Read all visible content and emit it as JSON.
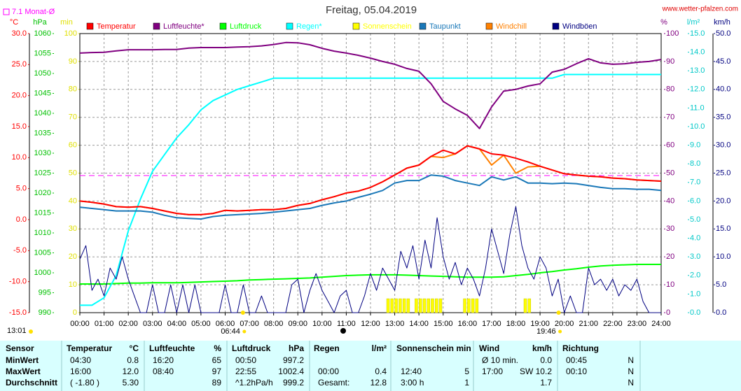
{
  "chart_data": {
    "type": "line",
    "title": "Freitag, 05.04.2019",
    "site": "www.wetter-pfalzen.com",
    "day_length": "13:01",
    "mean_line": {
      "label": "7.1 Monat-Ø",
      "value": 7.1,
      "axis": "c",
      "color": "#ff00ff"
    },
    "sun_events": [
      {
        "label": "06:44",
        "x": 6.733
      },
      {
        "label": "19:46",
        "x": 19.767
      }
    ],
    "xlim": [
      0,
      24
    ],
    "xticks": [
      {
        "value": 0,
        "label": "00:00"
      },
      {
        "value": 1,
        "label": "01:00"
      },
      {
        "value": 2,
        "label": "02:00"
      },
      {
        "value": 3,
        "label": "03:00"
      },
      {
        "value": 4,
        "label": "04:00"
      },
      {
        "value": 5,
        "label": "05:00"
      },
      {
        "value": 6,
        "label": "06:00"
      },
      {
        "value": 7,
        "label": "07:00"
      },
      {
        "value": 8,
        "label": "08:00"
      },
      {
        "value": 9,
        "label": "09:00"
      },
      {
        "value": 10,
        "label": "10:00"
      },
      {
        "value": 11,
        "label": "11:00"
      },
      {
        "value": 12,
        "label": "12:00"
      },
      {
        "value": 13,
        "label": "13:00"
      },
      {
        "value": 14,
        "label": "14:00"
      },
      {
        "value": 15,
        "label": "15:00"
      },
      {
        "value": 16,
        "label": "16:00"
      },
      {
        "value": 17,
        "label": "17:00"
      },
      {
        "value": 18,
        "label": "18:00"
      },
      {
        "value": 19,
        "label": "19:00"
      },
      {
        "value": 20,
        "label": "20:00"
      },
      {
        "value": 21,
        "label": "21:00"
      },
      {
        "value": 22,
        "label": "22:00"
      },
      {
        "value": 23,
        "label": "23:00"
      },
      {
        "value": 24,
        "label": "24:00"
      }
    ],
    "grid": true,
    "axes": [
      {
        "id": "c",
        "side": "left",
        "label": "°C",
        "color": "#ff0000",
        "lim": [
          -15,
          30
        ],
        "ticks": [
          {
            "value": 30,
            "label": "30.0"
          },
          {
            "value": 25,
            "label": "25.0"
          },
          {
            "value": 20,
            "label": "20.0"
          },
          {
            "value": 15,
            "label": "15.0"
          },
          {
            "value": 10,
            "label": "10.0"
          },
          {
            "value": 5,
            "label": "5.0"
          },
          {
            "value": 0,
            "label": "0.0"
          },
          {
            "value": -5,
            "label": "-5.0"
          },
          {
            "value": -10,
            "label": "-10.0"
          },
          {
            "value": -15,
            "label": "-15.0"
          }
        ]
      },
      {
        "id": "hpa",
        "side": "left",
        "label": "hPa",
        "color": "#00c000",
        "lim": [
          990,
          1060
        ],
        "ticks": [
          1060,
          1055,
          1050,
          1045,
          1040,
          1035,
          1030,
          1025,
          1020,
          1015,
          1010,
          1005,
          1000,
          995,
          990
        ]
      },
      {
        "id": "min",
        "side": "left",
        "label": "min",
        "color": "#e0e000",
        "lim": [
          0,
          100
        ],
        "ticks": [
          100,
          90,
          80,
          70,
          60,
          50,
          40,
          30,
          20,
          10,
          0
        ]
      },
      {
        "id": "pct",
        "side": "right",
        "label": "%",
        "color": "#800080",
        "lim": [
          0,
          100
        ],
        "ticks": [
          100,
          90,
          80,
          70,
          60,
          50,
          40,
          30,
          20,
          10,
          0
        ]
      },
      {
        "id": "l",
        "side": "right",
        "label": "l/m²",
        "color": "#00c8c8",
        "lim": [
          0,
          15
        ],
        "ticks": [
          {
            "value": 15,
            "label": "15.0"
          },
          {
            "value": 14,
            "label": "14.0"
          },
          {
            "value": 13,
            "label": "13.0"
          },
          {
            "value": 12,
            "label": "12.0"
          },
          {
            "value": 11,
            "label": "11.0"
          },
          {
            "value": 10,
            "label": "10.0"
          },
          {
            "value": 9,
            "label": "9.0"
          },
          {
            "value": 8,
            "label": "8.0"
          },
          {
            "value": 7,
            "label": "7.0"
          },
          {
            "value": 6,
            "label": "6.0"
          },
          {
            "value": 5,
            "label": "5.0"
          },
          {
            "value": 4,
            "label": "4.0"
          },
          {
            "value": 3,
            "label": "3.0"
          },
          {
            "value": 2,
            "label": "2.0"
          },
          {
            "value": 1,
            "label": "1.0"
          },
          {
            "value": 0,
            "label": "0.0"
          }
        ]
      },
      {
        "id": "kmh",
        "side": "right",
        "label": "km/h",
        "color": "#000080",
        "lim": [
          0,
          50
        ],
        "ticks": [
          {
            "value": 50,
            "label": "50.0"
          },
          {
            "value": 45,
            "label": "45.0"
          },
          {
            "value": 40,
            "label": "40.0"
          },
          {
            "value": 35,
            "label": "35.0"
          },
          {
            "value": 30,
            "label": "30.0"
          },
          {
            "value": 25,
            "label": "25.0"
          },
          {
            "value": 20,
            "label": "20.0"
          },
          {
            "value": 15,
            "label": "15.0"
          },
          {
            "value": 10,
            "label": "10.0"
          },
          {
            "value": 5,
            "label": "5.0"
          },
          {
            "value": 0,
            "label": "0.0"
          }
        ]
      }
    ],
    "x": [
      0,
      0.5,
      1,
      1.5,
      2,
      2.5,
      3,
      3.5,
      4,
      4.5,
      5,
      5.5,
      6,
      6.5,
      7,
      7.5,
      8,
      8.5,
      9,
      9.5,
      10,
      10.5,
      11,
      11.5,
      12,
      12.5,
      13,
      13.5,
      14,
      14.5,
      15,
      15.5,
      16,
      16.5,
      17,
      17.5,
      18,
      18.5,
      19,
      19.5,
      20,
      20.5,
      21,
      21.5,
      22,
      22.5,
      23,
      23.5,
      24
    ],
    "series": [
      {
        "name": "Temperatur",
        "color": "#ff0000",
        "axis": "c",
        "values": [
          3.0,
          2.8,
          2.5,
          2.1,
          2.0,
          2.1,
          1.8,
          1.4,
          1.0,
          0.8,
          0.8,
          1.0,
          1.5,
          1.4,
          1.5,
          1.6,
          1.6,
          1.8,
          2.3,
          2.6,
          3.2,
          3.7,
          4.3,
          4.6,
          5.2,
          6.1,
          7.2,
          8.3,
          8.8,
          10.2,
          11.2,
          10.6,
          11.9,
          11.4,
          10.6,
          10.4,
          9.9,
          9.3,
          8.6,
          8.0,
          7.4,
          7.2,
          7.0,
          6.9,
          6.7,
          6.6,
          6.4,
          6.3,
          6.2
        ]
      },
      {
        "name": "Luftfeuchte*",
        "color": "#800080",
        "axis": "pct",
        "values": [
          93,
          93.2,
          93.3,
          93.8,
          94.2,
          94.2,
          94.2,
          94.3,
          94.3,
          94.8,
          95,
          95,
          95,
          95.2,
          95.3,
          95.6,
          96.1,
          96.8,
          96.7,
          96,
          94.7,
          93.7,
          93,
          92.2,
          91.2,
          90,
          89,
          87.5,
          86.5,
          82,
          75.7,
          73,
          70.7,
          66,
          73.7,
          79.4,
          80,
          81.2,
          82,
          86.2,
          87.2,
          89.2,
          91,
          89.5,
          89,
          89.2,
          89.7,
          90,
          90.7
        ]
      },
      {
        "name": "Luftdruck",
        "color": "#00ff00",
        "axis": "hpa",
        "values": [
          997.2,
          997.2,
          997.2,
          997.3,
          997.4,
          997.4,
          997.5,
          997.5,
          997.5,
          997.6,
          997.7,
          997.8,
          997.9,
          998.0,
          998.2,
          998.3,
          998.4,
          998.5,
          998.6,
          998.7,
          998.9,
          999.1,
          999.3,
          999.4,
          999.5,
          999.5,
          999.5,
          999.4,
          999.3,
          999.2,
          999.1,
          999.0,
          998.9,
          998.9,
          998.9,
          999.0,
          999.3,
          999.6,
          1000.0,
          1000.3,
          1000.7,
          1001.0,
          1001.4,
          1001.7,
          1001.9,
          1002.0,
          1002.1,
          1002.1,
          1002.1
        ]
      },
      {
        "name": "Regen*",
        "color": "#00ffff",
        "axis": "l",
        "values": [
          0.4,
          0.4,
          0.8,
          2.0,
          4.4,
          6.1,
          7.6,
          8.5,
          9.4,
          10.1,
          10.9,
          11.4,
          11.7,
          12.0,
          12.2,
          12.4,
          12.6,
          12.6,
          12.6,
          12.6,
          12.6,
          12.6,
          12.6,
          12.6,
          12.6,
          12.6,
          12.6,
          12.6,
          12.6,
          12.6,
          12.6,
          12.6,
          12.6,
          12.6,
          12.6,
          12.6,
          12.6,
          12.6,
          12.6,
          12.6,
          12.8,
          12.8,
          12.8,
          12.8,
          12.8,
          12.8,
          12.8,
          12.8,
          12.8
        ]
      },
      {
        "name": "Sonnenschein",
        "color": "#ffff00",
        "axis": "min",
        "type": "bar",
        "x": [
          12.667,
          12.833,
          13,
          13.167,
          13.333,
          13.5,
          13.833,
          14,
          14.167,
          14.333,
          14.5,
          14.667,
          14.833,
          15.833,
          16,
          16.167,
          16.333,
          18.333,
          18.5
        ],
        "values": [
          5,
          5,
          5,
          5,
          5,
          5,
          5,
          5,
          5,
          5,
          5,
          5,
          5,
          5,
          5,
          5,
          5,
          5,
          5
        ]
      },
      {
        "name": "Taupunkt",
        "color": "#1a78b8",
        "axis": "c",
        "values": [
          2.0,
          1.8,
          1.6,
          1.4,
          1.4,
          1.4,
          1.2,
          0.7,
          0.3,
          0.2,
          0.1,
          0.5,
          0.7,
          0.8,
          0.9,
          1.0,
          1.2,
          1.4,
          1.6,
          1.8,
          2.3,
          2.7,
          3.0,
          3.6,
          4.1,
          4.7,
          5.9,
          6.3,
          6.3,
          7.2,
          7.0,
          6.3,
          5.9,
          5.5,
          6.9,
          6.4,
          6.9,
          5.9,
          5.9,
          5.8,
          5.9,
          5.8,
          5.5,
          5.2,
          5.0,
          5.0,
          4.9,
          4.9,
          4.7
        ]
      },
      {
        "name": "Windchill",
        "color": "#ff8000",
        "axis": "c",
        "values": [
          3.0,
          2.8,
          2.5,
          2.1,
          2.0,
          2.1,
          1.8,
          1.4,
          1.0,
          0.8,
          0.8,
          1.0,
          1.5,
          1.4,
          1.5,
          1.6,
          1.6,
          1.8,
          2.3,
          2.6,
          3.2,
          3.7,
          4.3,
          4.6,
          5.2,
          6.1,
          7.2,
          8.3,
          8.8,
          10.2,
          10.0,
          10.6,
          11.9,
          11.4,
          8.8,
          10.4,
          7.5,
          8.5,
          8.6,
          8.0,
          7.4,
          7.2,
          7.0,
          6.9,
          6.7,
          6.6,
          6.4,
          6.3,
          6.2
        ]
      },
      {
        "name": "Windböen",
        "color": "#000080",
        "axis": "kmh",
        "x": [
          0,
          0.25,
          0.5,
          0.75,
          1,
          1.25,
          1.5,
          1.75,
          2,
          2.25,
          2.5,
          2.75,
          3,
          3.25,
          3.5,
          3.75,
          4,
          4.25,
          4.5,
          4.75,
          5,
          5.25,
          5.5,
          5.75,
          6,
          6.25,
          6.5,
          6.75,
          7,
          7.25,
          7.5,
          7.75,
          8,
          8.25,
          8.5,
          8.75,
          9,
          9.25,
          9.5,
          9.75,
          10,
          10.25,
          10.5,
          10.75,
          11,
          11.25,
          11.5,
          11.75,
          12,
          12.25,
          12.5,
          12.75,
          13,
          13.25,
          13.5,
          13.75,
          14,
          14.25,
          14.5,
          14.75,
          15,
          15.25,
          15.5,
          15.75,
          16,
          16.25,
          16.5,
          16.75,
          17,
          17.25,
          17.5,
          17.75,
          18,
          18.25,
          18.5,
          18.75,
          19,
          19.25,
          19.5,
          19.75,
          20,
          20.25,
          20.5,
          20.75,
          21,
          21.25,
          21.5,
          21.75,
          22,
          22.25,
          22.5,
          22.75,
          23,
          23.25,
          23.5,
          23.75,
          24
        ],
        "values": [
          9.6,
          12,
          4,
          6,
          3,
          8,
          6,
          10,
          6,
          3,
          0,
          0,
          5,
          0,
          0,
          5,
          0,
          5,
          0,
          5,
          0,
          0,
          0,
          0,
          5,
          0,
          0,
          5,
          0,
          0,
          3,
          0,
          0,
          0,
          0,
          5,
          6,
          0,
          4,
          7,
          4,
          2,
          0,
          3,
          4,
          0,
          0,
          3,
          7,
          4,
          8,
          6,
          4,
          11,
          8,
          12,
          6,
          13,
          8,
          17,
          10,
          6,
          9,
          5,
          8,
          6,
          3,
          8,
          15,
          11,
          7,
          14,
          19,
          12,
          8,
          6,
          10,
          8,
          3,
          6,
          0,
          3,
          0,
          0,
          8,
          5,
          6,
          4,
          6,
          3,
          5,
          4,
          6,
          2,
          0,
          0,
          0
        ]
      }
    ]
  },
  "table": {
    "header": {
      "label": "Sensor",
      "temp": "Temperatur",
      "temp_unit": "°C",
      "hum": "Luftfeuchte",
      "hum_unit": "%",
      "press": "Luftdruck",
      "press_unit": "hPa",
      "rain": "Regen",
      "rain_unit": "l/m²",
      "sun": "Sonnenschein min",
      "wind": "Wind",
      "wind_unit": "km/h",
      "dir": "Richtung"
    },
    "rows": [
      {
        "label": "MinWert",
        "temp_time": "04:30",
        "temp": "0.8",
        "hum_time": "16:20",
        "hum": "65",
        "press_time": "00:50",
        "press": "997.2",
        "wind_time": "Ø 10 min.",
        "wind": "0.0",
        "dir_time": "00:45",
        "dir": "N"
      },
      {
        "label": "MaxWert",
        "temp_time": "16:00",
        "temp": "12.0",
        "hum_time": "08:40",
        "hum": "97",
        "press_time": "22:55",
        "press": "1002.4",
        "rain_time": "00:00",
        "rain": "0.4",
        "sun_time": "12:40",
        "sun": "5",
        "wind_time": "17:00",
        "wind": "SW 10.2",
        "dir_time": "00:10",
        "dir": "N"
      },
      {
        "label": "Durchschnitt",
        "temp_time": "( -1.80 )",
        "temp": "5.30",
        "hum": "89",
        "press_time": "^1.2hPa/h",
        "press": "999.2",
        "rain_time": "Gesamt:",
        "rain": "12.8",
        "sun_time": "3:00 h",
        "sun": "1",
        "wind": "1.7",
        "dir": "N"
      }
    ]
  }
}
